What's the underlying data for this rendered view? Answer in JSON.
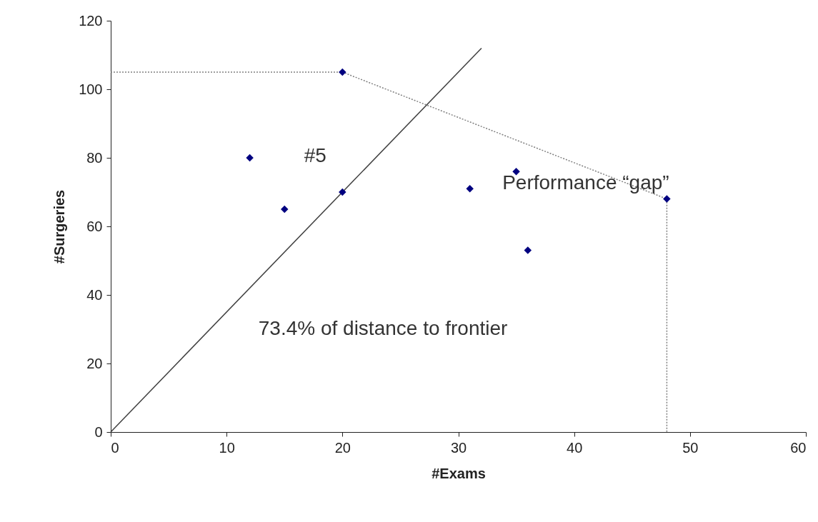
{
  "chart_data": {
    "type": "scatter",
    "xlabel": "#Exams",
    "ylabel": "#Surgeries",
    "xlim": [
      0,
      60
    ],
    "xticks": [
      0,
      10,
      20,
      30,
      40,
      50,
      60
    ],
    "ylim": [
      0,
      120
    ],
    "yticks": [
      0,
      20,
      40,
      60,
      80,
      100,
      120
    ],
    "grid": false,
    "marker": "diamond",
    "series": [
      {
        "type": "line",
        "color": "#808080",
        "line_style": "dotted",
        "marker": "none",
        "x": [
          0,
          20,
          48,
          48
        ],
        "values": [
          105,
          105,
          68,
          0
        ]
      },
      {
        "type": "line",
        "color": "#404040",
        "line_style": "solid",
        "marker": "none",
        "x": [
          0,
          32
        ],
        "values": [
          0,
          112
        ]
      },
      {
        "color": "#000080",
        "x": [
          12,
          15,
          20,
          20,
          31,
          35,
          36,
          48
        ],
        "values": [
          80,
          65,
          70,
          105,
          71,
          76,
          53,
          68
        ]
      }
    ],
    "annotations": [
      {
        "text": "#5",
        "x": 20,
        "y": 70
      },
      "Performance “gap”",
      "73.4% of distance to frontier"
    ]
  }
}
